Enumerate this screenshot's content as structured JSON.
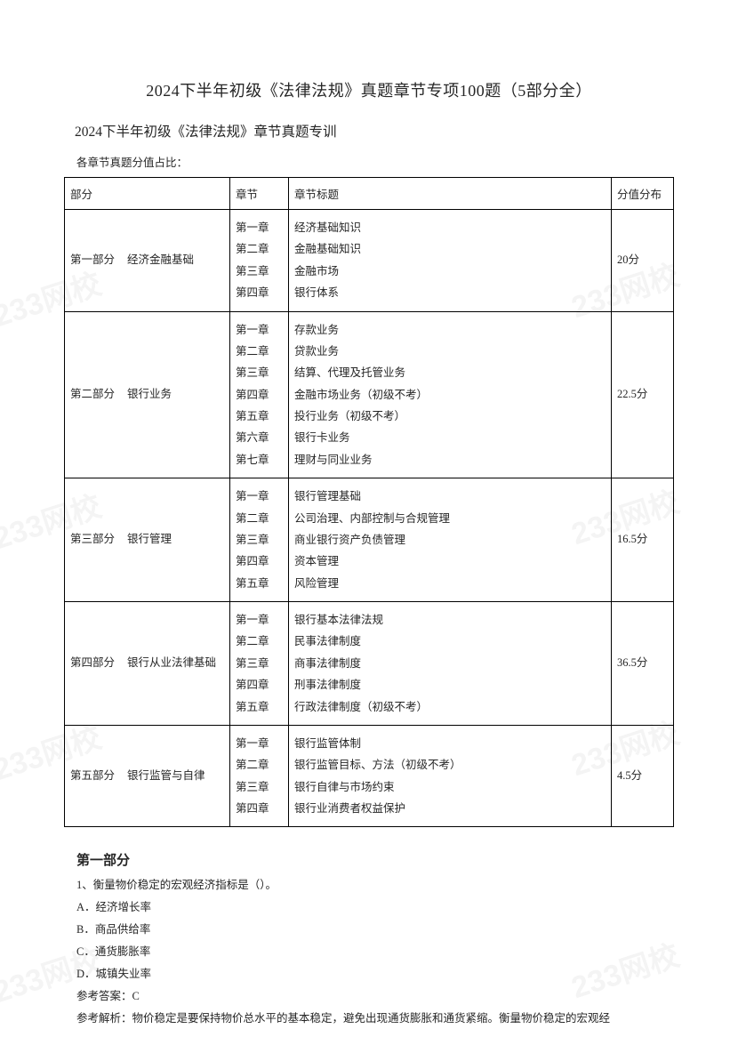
{
  "main_title": "2024下半年初级《法律法规》真题章节专项100题（5部分全）",
  "sub_title": "2024下半年初级《法律法规》章节真题专训",
  "intro_line": "各章节真题分值占比：",
  "table": {
    "headers": {
      "part": "部分",
      "chapter": "章节",
      "topic": "章节标题",
      "score": "分值分布"
    },
    "sections": [
      {
        "part_label": "第一部分",
        "part_name": "经济金融基础",
        "score": "20分",
        "chapters": [
          {
            "no": "第一章",
            "title": "经济基础知识"
          },
          {
            "no": "第二章",
            "title": "金融基础知识"
          },
          {
            "no": "第三章",
            "title": "金融市场"
          },
          {
            "no": "第四章",
            "title": "银行体系"
          }
        ]
      },
      {
        "part_label": "第二部分",
        "part_name": "银行业务",
        "score": "22.5分",
        "chapters": [
          {
            "no": "第一章",
            "title": "存款业务"
          },
          {
            "no": "第二章",
            "title": "贷款业务"
          },
          {
            "no": "第三章",
            "title": "结算、代理及托管业务"
          },
          {
            "no": "第四章",
            "title": "金融市场业务（初级不考）"
          },
          {
            "no": "第五章",
            "title": "投行业务（初级不考）"
          },
          {
            "no": "第六章",
            "title": "银行卡业务"
          },
          {
            "no": "第七章",
            "title": "理财与同业业务"
          }
        ]
      },
      {
        "part_label": "第三部分",
        "part_name": "银行管理",
        "score": "16.5分",
        "chapters": [
          {
            "no": "第一章",
            "title": "银行管理基础"
          },
          {
            "no": "第二章",
            "title": "公司治理、内部控制与合规管理"
          },
          {
            "no": "第三章",
            "title": "商业银行资产负债管理"
          },
          {
            "no": "第四章",
            "title": "资本管理"
          },
          {
            "no": "第五章",
            "title": "风险管理"
          }
        ]
      },
      {
        "part_label": "第四部分",
        "part_name": "银行从业法律基础",
        "score": "36.5分",
        "chapters": [
          {
            "no": "第一章",
            "title": "银行基本法律法规"
          },
          {
            "no": "第二章",
            "title": "民事法律制度"
          },
          {
            "no": "第三章",
            "title": "商事法律制度"
          },
          {
            "no": "第四章",
            "title": "刑事法律制度"
          },
          {
            "no": "第五章",
            "title": "行政法律制度（初级不考）"
          }
        ]
      },
      {
        "part_label": "第五部分",
        "part_name": "银行监管与自律",
        "score": "4.5分",
        "chapters": [
          {
            "no": "第一章",
            "title": "银行监管体制"
          },
          {
            "no": "第二章",
            "title": "银行监管目标、方法（初级不考）"
          },
          {
            "no": "第三章",
            "title": "银行自律与市场约束"
          },
          {
            "no": "第四章",
            "title": "银行业消费者权益保护"
          }
        ]
      }
    ]
  },
  "part1_heading": "第一部分",
  "question1": {
    "stem": "1、衡量物价稳定的宏观经济指标是（）。",
    "options": {
      "A": "A．经济增长率",
      "B": "B．商品供给率",
      "C": "C．通货膨胀率",
      "D": "D．城镇失业率"
    },
    "answer_label": "参考答案：C",
    "explain": "参考解析：物价稳定是要保持物价总水平的基本稳定，避免出现通货膨胀和通货紧缩。衡量物价稳定的宏观经"
  },
  "watermark_text": "233网校"
}
